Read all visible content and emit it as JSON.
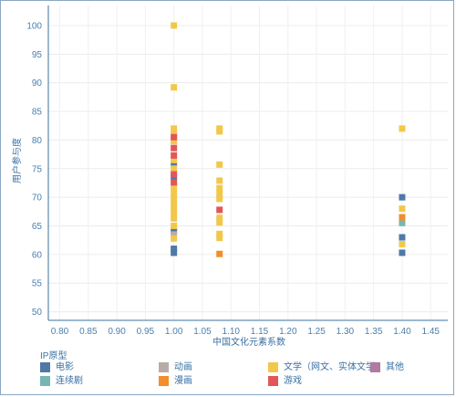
{
  "chart_data": {
    "type": "scatter",
    "title": "",
    "xlabel": "中国文化元素系数",
    "ylabel": "用户参与度",
    "xlim": [
      0.78,
      1.48
    ],
    "ylim": [
      48.5,
      103.5
    ],
    "xticks": [
      "0.80",
      "0.85",
      "0.90",
      "0.95",
      "1.00",
      "1.05",
      "1.10",
      "1.15",
      "1.20",
      "1.25",
      "1.30",
      "1.35",
      "1.40",
      "1.45"
    ],
    "yticks": [
      "50",
      "55",
      "60",
      "65",
      "70",
      "75",
      "80",
      "85",
      "90",
      "95",
      "100"
    ],
    "grid": true,
    "legend_title": "IP原型",
    "legend_placement": "bottom",
    "series": [
      {
        "name": "电影",
        "color": "#4e79a7",
        "points": [
          [
            1.0,
            61
          ],
          [
            1.0,
            60.3
          ],
          [
            1.0,
            64.2
          ],
          [
            1.0,
            73.5
          ],
          [
            1.0,
            75.8
          ],
          [
            1.4,
            70
          ],
          [
            1.4,
            63
          ],
          [
            1.4,
            60.3
          ]
        ]
      },
      {
        "name": "动画",
        "color": "#b9aca6",
        "points": [
          [
            1.0,
            63.5
          ]
        ]
      },
      {
        "name": "文学（网文、实体文学）",
        "color": "#f2c84b",
        "points": [
          [
            1.0,
            100
          ],
          [
            1.0,
            89.2
          ],
          [
            1.0,
            82
          ],
          [
            1.0,
            81
          ],
          [
            1.0,
            79.8
          ],
          [
            1.0,
            76.5
          ],
          [
            1.0,
            75
          ],
          [
            1.0,
            72
          ],
          [
            1.0,
            71
          ],
          [
            1.0,
            70
          ],
          [
            1.0,
            69
          ],
          [
            1.0,
            68.2
          ],
          [
            1.0,
            67.2
          ],
          [
            1.0,
            66.3
          ],
          [
            1.0,
            65
          ],
          [
            1.0,
            62.8
          ],
          [
            1.08,
            82
          ],
          [
            1.08,
            81.5
          ],
          [
            1.08,
            75.7
          ],
          [
            1.08,
            72.9
          ],
          [
            1.08,
            71.6
          ],
          [
            1.08,
            70.6
          ],
          [
            1.08,
            69.7
          ],
          [
            1.08,
            66.4
          ],
          [
            1.08,
            65.6
          ],
          [
            1.08,
            63.6
          ],
          [
            1.08,
            62.9
          ],
          [
            1.4,
            82
          ],
          [
            1.4,
            68
          ],
          [
            1.4,
            61.8
          ]
        ]
      },
      {
        "name": "其他",
        "color": "#b07aa1",
        "points": []
      },
      {
        "name": "连续剧",
        "color": "#76b7b2",
        "points": [
          [
            1.4,
            65.5
          ]
        ]
      },
      {
        "name": "漫画",
        "color": "#f28e2b",
        "points": [
          [
            1.08,
            60.1
          ],
          [
            1.4,
            66.5
          ]
        ]
      },
      {
        "name": "游戏",
        "color": "#e15759",
        "points": [
          [
            1.0,
            80.5
          ],
          [
            1.0,
            78.6
          ],
          [
            1.0,
            77.3
          ],
          [
            1.0,
            74
          ],
          [
            1.0,
            72.6
          ],
          [
            1.08,
            67.8
          ]
        ]
      }
    ]
  }
}
